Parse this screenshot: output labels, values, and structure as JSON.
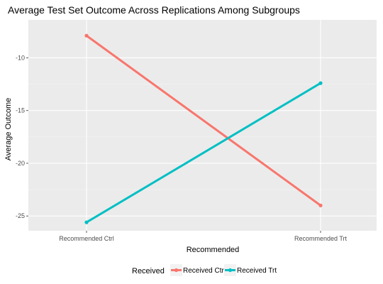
{
  "chart_data": {
    "type": "line",
    "title": "Average Test Set Outcome Across Replications Among Subgroups",
    "xlabel": "Recommended",
    "ylabel": "Average Outcome",
    "categories": [
      "Recommended Ctrl",
      "Recommended Trt"
    ],
    "ylim": [
      -26.4,
      -6.4
    ],
    "yticks": [
      -10,
      -15,
      -20,
      -25
    ],
    "grid": true,
    "legend": {
      "title": "Received",
      "position": "bottom"
    },
    "series": [
      {
        "name": "Received Ctrl",
        "color": "#F8766D",
        "values": [
          -7.9,
          -24.0
        ]
      },
      {
        "name": "Received Trt",
        "color": "#00BFC4",
        "values": [
          -25.6,
          -12.4
        ]
      }
    ]
  }
}
